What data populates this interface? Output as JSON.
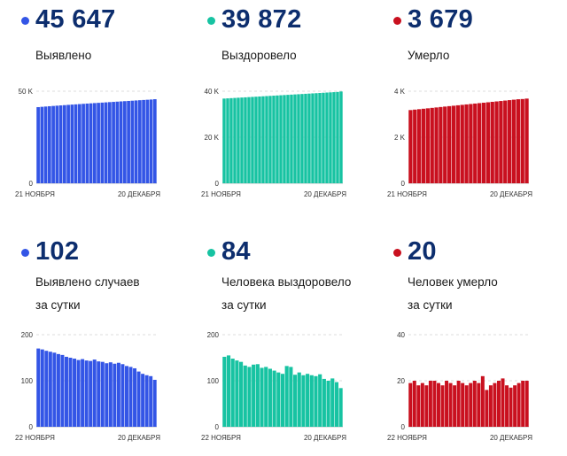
{
  "colors": {
    "blue": "#3355e6",
    "green": "#17c3a2",
    "red": "#c9101f",
    "number": "#0d2e6e"
  },
  "panels": [
    {
      "key": "cumulative_cases",
      "color": "#3355e6",
      "number": "45 647",
      "label_lines": [
        "Выявлено"
      ],
      "chart_data": {
        "type": "bar",
        "title": "Выявлено",
        "y_ticks": [
          {
            "value": 0,
            "label": "0"
          },
          {
            "value": 50000,
            "label": "50 K"
          }
        ],
        "ylim": [
          0,
          50000
        ],
        "x_start_label": "21 НОЯБРЯ",
        "x_end_label": "20 ДЕКАБРЯ",
        "values": [
          41350,
          41520,
          41680,
          41840,
          41990,
          42140,
          42290,
          42430,
          42580,
          42720,
          42860,
          43000,
          43140,
          43280,
          43410,
          43550,
          43680,
          43810,
          43940,
          44070,
          44200,
          44330,
          44460,
          44590,
          44720,
          44850,
          44980,
          45110,
          45240,
          45360,
          45480,
          45647
        ]
      }
    },
    {
      "key": "cumulative_recovered",
      "color": "#17c3a2",
      "number": "39 872",
      "label_lines": [
        "Выздоровело"
      ],
      "chart_data": {
        "type": "bar",
        "title": "Выздоровело",
        "y_ticks": [
          {
            "value": 0,
            "label": "0"
          },
          {
            "value": 20000,
            "label": "20 K"
          },
          {
            "value": 40000,
            "label": "40 K"
          }
        ],
        "ylim": [
          0,
          40000
        ],
        "x_start_label": "21 НОЯБРЯ",
        "x_end_label": "20 ДЕКАБРЯ",
        "values": [
          36800,
          36890,
          36980,
          37070,
          37160,
          37250,
          37340,
          37430,
          37520,
          37610,
          37700,
          37790,
          37880,
          37970,
          38060,
          38150,
          38240,
          38330,
          38420,
          38510,
          38600,
          38690,
          38780,
          38870,
          38960,
          39050,
          39140,
          39230,
          39320,
          39410,
          39500,
          39590,
          39680,
          39872
        ]
      }
    },
    {
      "key": "cumulative_deaths",
      "color": "#c9101f",
      "number": "3 679",
      "label_lines": [
        "Умерло"
      ],
      "chart_data": {
        "type": "bar",
        "title": "Умерло",
        "y_ticks": [
          {
            "value": 0,
            "label": "0"
          },
          {
            "value": 2000,
            "label": "2 K"
          },
          {
            "value": 4000,
            "label": "4 K"
          }
        ],
        "ylim": [
          0,
          4000
        ],
        "x_start_label": "21 НОЯБРЯ",
        "x_end_label": "20 ДЕКАБРЯ",
        "values": [
          3180,
          3200,
          3219,
          3238,
          3256,
          3275,
          3294,
          3313,
          3332,
          3351,
          3369,
          3388,
          3407,
          3426,
          3444,
          3463,
          3482,
          3500,
          3519,
          3538,
          3556,
          3575,
          3594,
          3612,
          3631,
          3650,
          3660,
          3679
        ]
      }
    },
    {
      "key": "daily_cases",
      "color": "#3355e6",
      "number": "102",
      "label_lines": [
        "Выявлено случаев",
        "за сутки"
      ],
      "chart_data": {
        "type": "bar",
        "title": "Выявлено случаев за сутки",
        "y_ticks": [
          {
            "value": 0,
            "label": "0"
          },
          {
            "value": 100,
            "label": "100"
          },
          {
            "value": 200,
            "label": "200"
          }
        ],
        "ylim": [
          0,
          200
        ],
        "x_start_label": "22 НОЯБРЯ",
        "x_end_label": "20 ДЕКАБРЯ",
        "values": [
          170,
          168,
          165,
          163,
          161,
          158,
          156,
          152,
          150,
          148,
          145,
          147,
          144,
          143,
          146,
          142,
          141,
          138,
          140,
          137,
          139,
          136,
          132,
          130,
          127,
          120,
          115,
          112,
          110,
          102
        ]
      }
    },
    {
      "key": "daily_recovered",
      "color": "#17c3a2",
      "number": "84",
      "label_lines": [
        "Человека выздоровело",
        "за сутки"
      ],
      "chart_data": {
        "type": "bar",
        "title": "Человека выздоровело за сутки",
        "y_ticks": [
          {
            "value": 0,
            "label": "0"
          },
          {
            "value": 100,
            "label": "100"
          },
          {
            "value": 200,
            "label": "200"
          }
        ],
        "ylim": [
          0,
          200
        ],
        "x_start_label": "22 НОЯБРЯ",
        "x_end_label": "20 ДЕКАБРЯ",
        "values": [
          152,
          155,
          148,
          144,
          141,
          133,
          130,
          135,
          136,
          128,
          130,
          126,
          122,
          118,
          115,
          132,
          130,
          113,
          118,
          112,
          115,
          112,
          110,
          114,
          104,
          100,
          105,
          97,
          84
        ]
      }
    },
    {
      "key": "daily_deaths",
      "color": "#c9101f",
      "number": "20",
      "label_lines": [
        "Человек умерло",
        "за сутки"
      ],
      "chart_data": {
        "type": "bar",
        "title": "Человек умерло за сутки",
        "y_ticks": [
          {
            "value": 0,
            "label": "0"
          },
          {
            "value": 20,
            "label": "20"
          },
          {
            "value": 40,
            "label": "40"
          }
        ],
        "ylim": [
          0,
          40
        ],
        "x_start_label": "22 НОЯБРЯ",
        "x_end_label": "20 ДЕКАБРЯ",
        "values": [
          19,
          20,
          18,
          19,
          18,
          20,
          20,
          19,
          18,
          20,
          19,
          18,
          20,
          19,
          18,
          19,
          20,
          19,
          22,
          16,
          18,
          19,
          20,
          21,
          18,
          17,
          18,
          19,
          20,
          20
        ]
      }
    }
  ]
}
